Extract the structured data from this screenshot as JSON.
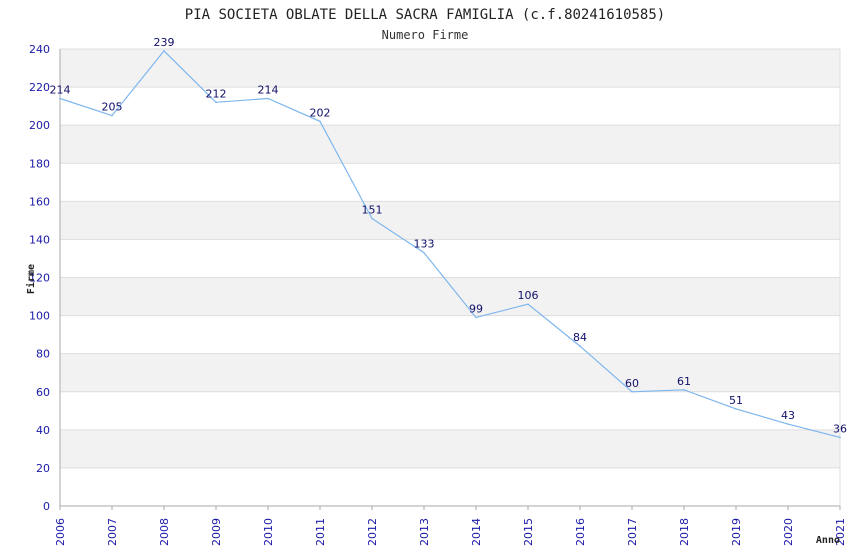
{
  "colors": {
    "line": "#7eb6ee",
    "band": "#f2f2f2",
    "grid": "#dddddd",
    "axis": "#aaaaaa",
    "tick_text": "#1a1aa8"
  },
  "chart_data": {
    "type": "line",
    "title": "PIA SOCIETA OBLATE DELLA SACRA FAMIGLIA (c.f.80241610585)",
    "subtitle": "Numero Firme",
    "xlabel": "Anno",
    "ylabel": "Firme",
    "ylim": [
      0,
      240
    ],
    "y_ticks": [
      0,
      20,
      40,
      60,
      80,
      100,
      120,
      140,
      160,
      180,
      200,
      220,
      240
    ],
    "categories": [
      "2006",
      "2007",
      "2008",
      "2009",
      "2010",
      "2011",
      "2012",
      "2013",
      "2014",
      "2015",
      "2016",
      "2017",
      "2018",
      "2019",
      "2020",
      "2021"
    ],
    "series": [
      {
        "name": "Numero Firme",
        "values": [
          214,
          205,
          239,
          212,
          214,
          202,
          151,
          133,
          99,
          106,
          84,
          60,
          61,
          51,
          43,
          36
        ]
      }
    ],
    "grid": true
  }
}
